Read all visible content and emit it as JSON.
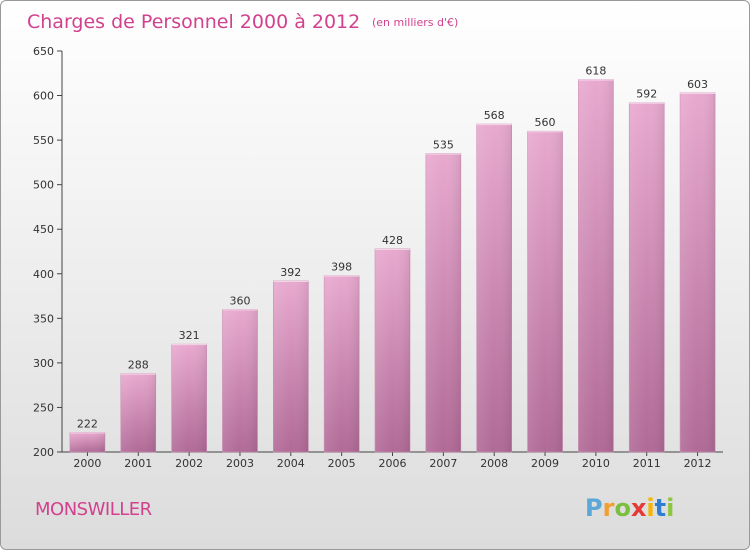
{
  "title": "Charges de Personnel 2000 à 2012",
  "subtitle": "(en milliers d'€)",
  "commune": "MONSWILLER",
  "logo": {
    "letters": [
      "P",
      "r",
      "o",
      "x",
      "i",
      "t",
      "i"
    ],
    "colors": [
      "#5aa7d8",
      "#f29f2e",
      "#7cbf3e",
      "#e53935",
      "#f7b500",
      "#2f7fd1",
      "#8dc63f"
    ]
  },
  "colors": {
    "bar_top": "#e8a9cf",
    "bar_bottom": "#b06a96",
    "title": "#d2418e"
  },
  "chart_data": {
    "type": "bar",
    "categories": [
      "2000",
      "2001",
      "2002",
      "2003",
      "2004",
      "2005",
      "2006",
      "2007",
      "2008",
      "2009",
      "2010",
      "2011",
      "2012"
    ],
    "values": [
      222,
      288,
      321,
      360,
      392,
      398,
      428,
      535,
      568,
      560,
      618,
      592,
      603
    ],
    "ylim": [
      200,
      650
    ],
    "yticks": [
      200,
      250,
      300,
      350,
      400,
      450,
      500,
      550,
      600,
      650
    ],
    "grid": false,
    "legend": "none"
  }
}
